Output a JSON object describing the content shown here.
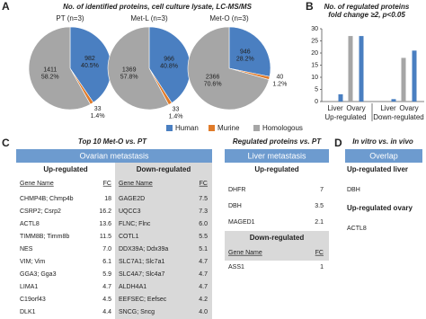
{
  "panel_labels": [
    "A",
    "B",
    "C",
    "D"
  ],
  "chart_data": [
    {
      "type": "pie",
      "title": "No. of identified proteins, cell culture lysate, LC-MS/MS",
      "categories": [
        "Human",
        "Murine",
        "Homologous"
      ],
      "colors": [
        "#4a7fc1",
        "#e07b2a",
        "#a6a6a6"
      ],
      "pies": [
        {
          "name": "PT (n=3)",
          "values": [
            982,
            33,
            1411
          ],
          "percent_labels": [
            "40.5%",
            "1.4%",
            "58.2%"
          ]
        },
        {
          "name": "Met-L (n=3)",
          "values": [
            966,
            33,
            1369
          ],
          "percent_labels": [
            "40.8%",
            "1.4%",
            "57.8%"
          ]
        },
        {
          "name": "Met-O (n=3)",
          "values": [
            946,
            40,
            2366
          ],
          "percent_labels": [
            "28.2%",
            "1.2%",
            "70.6%"
          ]
        }
      ]
    },
    {
      "type": "bar",
      "title": "No. of regulated proteins",
      "subtitle": "fold change ≥2, p<0.05",
      "categories": [
        "Liver",
        "Ovary",
        "Liver",
        "Ovary"
      ],
      "group_labels": [
        "Up-regulated",
        "Down-regulated"
      ],
      "series": [
        {
          "name": "Homologous",
          "color": "#a6a6a6",
          "values": [
            0,
            27,
            0,
            18
          ]
        },
        {
          "name": "Murine",
          "color": "#e07b2a",
          "values": [
            0,
            0,
            0,
            0
          ]
        },
        {
          "name": "Human",
          "color": "#4a7fc1",
          "values": [
            3,
            27,
            1,
            21
          ]
        }
      ],
      "ylim": [
        0,
        30
      ],
      "yticks": [
        0,
        5,
        10,
        15,
        20,
        25,
        30
      ]
    }
  ],
  "ovarian": {
    "title": "Top 10 Met-O vs. PT",
    "header": "Ovarian metastasis",
    "up": {
      "label": "Up-regulated",
      "columns": [
        "Gene Name",
        "FC"
      ],
      "rows": [
        [
          "CHMP4B; Chmp4b",
          "18"
        ],
        [
          "CSRP2; Csrp2",
          "16.2"
        ],
        [
          "ACTL8",
          "13.6"
        ],
        [
          "TIMM8B; Timm8b",
          "11.5"
        ],
        [
          "NES",
          "7.0"
        ],
        [
          "VIM; Vim",
          "6.1"
        ],
        [
          "GGA3; Gga3",
          "5.9"
        ],
        [
          "LIMA1",
          "4.7"
        ],
        [
          "C19orf43",
          "4.5"
        ],
        [
          "DLK1",
          "4.4"
        ]
      ]
    },
    "down": {
      "label": "Down-regulated",
      "columns": [
        "Gene Name",
        "FC"
      ],
      "rows": [
        [
          "GAGE2D",
          "7.5"
        ],
        [
          "UQCC3",
          "7.3"
        ],
        [
          "FLNC; Flnc",
          "6.0"
        ],
        [
          "COTL1",
          "5.5"
        ],
        [
          "DDX39A; Ddx39a",
          "5.1"
        ],
        [
          "SLC7A1; Slc7a1",
          "4.7"
        ],
        [
          "SLC4A7; Slc4a7",
          "4.7"
        ],
        [
          "ALDH4A1",
          "4.7"
        ],
        [
          "EEFSEC; Eefsec",
          "4.2"
        ],
        [
          "SNCG; Sncg",
          "4.0"
        ]
      ]
    }
  },
  "liver": {
    "title": "Regulated proteins vs. PT",
    "header": "Liver metastasis",
    "up": {
      "label": "Up-regulated",
      "columns": [
        "Gene Name",
        "FC"
      ],
      "rows": [
        [
          "DHFR",
          "7"
        ],
        [
          "DBH",
          "3.5"
        ],
        [
          "MAGED1",
          "2.1"
        ]
      ]
    },
    "down": {
      "label": "Down-regulated",
      "columns": [
        "Gene Name",
        "FC"
      ],
      "rows": [
        [
          "ASS1",
          "1"
        ]
      ]
    }
  },
  "overlap": {
    "title": "In vitro vs. in vivo",
    "header": "Overlap",
    "liver": {
      "label": "Up-regulated liver",
      "rows": [
        "DBH"
      ]
    },
    "ovary": {
      "label": "Up-regulated ovary",
      "rows": [
        "ACTL8"
      ]
    }
  }
}
